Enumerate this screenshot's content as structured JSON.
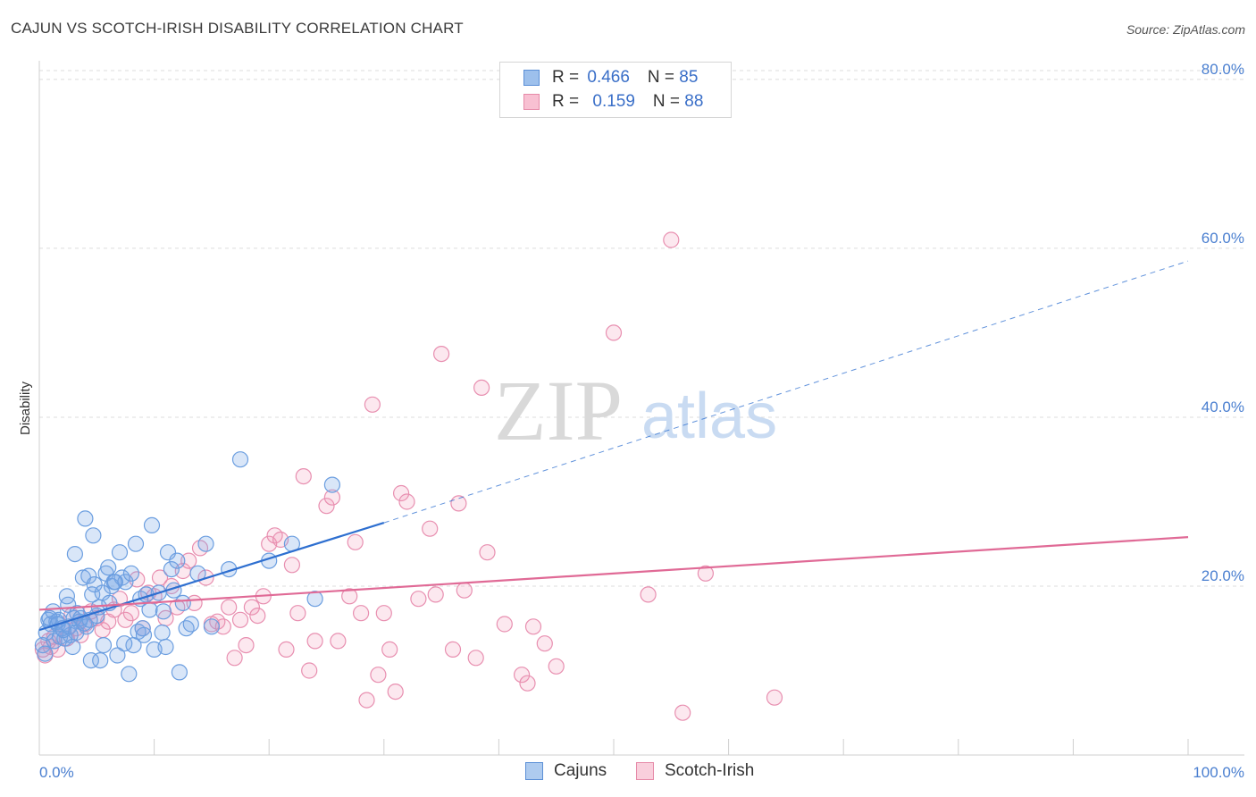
{
  "title": "CAJUN VS SCOTCH-IRISH DISABILITY CORRELATION CHART",
  "source": "Source: ZipAtlas.com",
  "watermark": {
    "zip": "ZIP",
    "atlas": "atlas"
  },
  "legend": {
    "rows": [
      {
        "r_label": "R = ",
        "r_value": "0.466",
        "n_label": "N = ",
        "n_value": "85",
        "color": "#9dc0ec",
        "border": "#5b8fd6"
      },
      {
        "r_label": "R = ",
        "r_value": "0.159",
        "n_label": "N = ",
        "n_value": "88",
        "color": "#f8c0d2",
        "border": "#e68aa8"
      }
    ]
  },
  "bottom_legend": {
    "items": [
      {
        "label": "Cajuns",
        "color": "#aecbef",
        "border": "#5b8fd6"
      },
      {
        "label": "Scotch-Irish",
        "color": "#f9cfdc",
        "border": "#e68aa8"
      }
    ]
  },
  "chart_data": {
    "type": "scatter",
    "title": "CAJUN VS SCOTCH-IRISH DISABILITY CORRELATION CHART",
    "xlabel": "",
    "ylabel": "Disability",
    "xlim": [
      0,
      100
    ],
    "ylim": [
      0,
      82
    ],
    "y_ticks": [
      {
        "value": 20,
        "label": "20.0%"
      },
      {
        "value": 40,
        "label": "40.0%"
      },
      {
        "value": 60,
        "label": "60.0%"
      },
      {
        "value": 80,
        "label": "80.0%"
      }
    ],
    "x_tick_labels": {
      "min": "0.0%",
      "max": "100.0%"
    },
    "x_minor_ticks": [
      0,
      10,
      20,
      30,
      40,
      50,
      60,
      70,
      80,
      90,
      100
    ],
    "grid": true,
    "legend": "top-center",
    "series": [
      {
        "name": "Cajuns",
        "color": "#6b9ee0",
        "fill": "rgba(120,165,230,0.28)",
        "trend": {
          "x0": 0,
          "y0": 14.8,
          "x1": 30,
          "y1": 27.5,
          "dashed_to_x": 100,
          "dashed_to_y": 58.5,
          "color": "#2e6fd0"
        },
        "points": [
          [
            0.3,
            13.0
          ],
          [
            0.5,
            12.0
          ],
          [
            0.6,
            14.5
          ],
          [
            0.8,
            16.0
          ],
          [
            1.0,
            15.5
          ],
          [
            1.2,
            17.0
          ],
          [
            1.3,
            13.5
          ],
          [
            1.5,
            15.8
          ],
          [
            1.7,
            16.0
          ],
          [
            1.8,
            14.0
          ],
          [
            2.0,
            15.0
          ],
          [
            2.2,
            13.8
          ],
          [
            2.4,
            18.8
          ],
          [
            2.5,
            17.8
          ],
          [
            2.7,
            14.2
          ],
          [
            2.9,
            12.8
          ],
          [
            3.0,
            16.2
          ],
          [
            3.1,
            23.8
          ],
          [
            3.3,
            16.8
          ],
          [
            3.5,
            15.8
          ],
          [
            3.6,
            16.2
          ],
          [
            3.8,
            21.0
          ],
          [
            4.0,
            28.0
          ],
          [
            4.1,
            15.2
          ],
          [
            4.3,
            21.2
          ],
          [
            4.5,
            11.2
          ],
          [
            4.6,
            19.0
          ],
          [
            4.7,
            26.0
          ],
          [
            4.8,
            20.2
          ],
          [
            5.0,
            16.5
          ],
          [
            5.2,
            17.5
          ],
          [
            5.3,
            11.2
          ],
          [
            5.5,
            19.2
          ],
          [
            5.6,
            13.0
          ],
          [
            5.8,
            21.5
          ],
          [
            6.0,
            22.2
          ],
          [
            6.1,
            18.0
          ],
          [
            6.3,
            20.0
          ],
          [
            6.5,
            20.5
          ],
          [
            6.8,
            11.8
          ],
          [
            7.0,
            24.0
          ],
          [
            7.2,
            21.0
          ],
          [
            7.5,
            20.5
          ],
          [
            7.8,
            9.6
          ],
          [
            8.0,
            21.5
          ],
          [
            8.2,
            13.0
          ],
          [
            8.4,
            25.0
          ],
          [
            8.6,
            14.6
          ],
          [
            8.8,
            18.5
          ],
          [
            9.0,
            15.0
          ],
          [
            9.3,
            19.0
          ],
          [
            9.6,
            17.2
          ],
          [
            9.8,
            27.2
          ],
          [
            10.0,
            12.5
          ],
          [
            10.4,
            19.2
          ],
          [
            10.7,
            14.5
          ],
          [
            11.0,
            12.8
          ],
          [
            11.2,
            24.0
          ],
          [
            11.5,
            22.0
          ],
          [
            11.7,
            19.5
          ],
          [
            12.0,
            23.0
          ],
          [
            12.2,
            9.8
          ],
          [
            12.5,
            18.0
          ],
          [
            12.8,
            15.0
          ],
          [
            13.2,
            15.5
          ],
          [
            13.8,
            21.5
          ],
          [
            14.5,
            25.0
          ],
          [
            15.0,
            15.2
          ],
          [
            16.5,
            22.0
          ],
          [
            17.5,
            35.0
          ],
          [
            20.0,
            23.0
          ],
          [
            22.0,
            25.0
          ],
          [
            24.0,
            18.5
          ],
          [
            25.5,
            32.0
          ],
          [
            0.9,
            16.2
          ],
          [
            1.6,
            15.5
          ],
          [
            2.1,
            14.8
          ],
          [
            2.6,
            15.2
          ],
          [
            3.2,
            14.5
          ],
          [
            3.9,
            15.6
          ],
          [
            4.4,
            16.0
          ],
          [
            6.6,
            20.5
          ],
          [
            7.4,
            13.2
          ],
          [
            9.1,
            14.2
          ],
          [
            10.8,
            17.0
          ]
        ]
      },
      {
        "name": "Scotch-Irish",
        "color": "#e88fb0",
        "fill": "rgba(240,150,180,0.22)",
        "trend": {
          "x0": 0,
          "y0": 17.2,
          "x1": 100,
          "y1": 25.8,
          "color": "#e06a96"
        },
        "points": [
          [
            0.3,
            12.5
          ],
          [
            0.5,
            11.8
          ],
          [
            0.8,
            13.5
          ],
          [
            1.0,
            12.8
          ],
          [
            1.3,
            14.0
          ],
          [
            1.6,
            12.5
          ],
          [
            2.0,
            15.0
          ],
          [
            2.4,
            13.8
          ],
          [
            2.8,
            16.5
          ],
          [
            3.2,
            15.0
          ],
          [
            3.6,
            14.2
          ],
          [
            4.0,
            15.5
          ],
          [
            4.5,
            17.0
          ],
          [
            5.0,
            16.2
          ],
          [
            5.5,
            14.8
          ],
          [
            6.0,
            15.8
          ],
          [
            6.5,
            17.2
          ],
          [
            7.0,
            18.5
          ],
          [
            7.5,
            16.0
          ],
          [
            8.0,
            16.8
          ],
          [
            8.5,
            20.8
          ],
          [
            9.0,
            15.0
          ],
          [
            9.5,
            19.2
          ],
          [
            10.0,
            18.8
          ],
          [
            10.5,
            21.0
          ],
          [
            11.0,
            16.2
          ],
          [
            11.5,
            20.0
          ],
          [
            12.0,
            17.5
          ],
          [
            12.5,
            21.8
          ],
          [
            13.0,
            23.0
          ],
          [
            13.5,
            18.0
          ],
          [
            14.0,
            24.5
          ],
          [
            14.5,
            21.0
          ],
          [
            15.0,
            15.5
          ],
          [
            15.5,
            15.8
          ],
          [
            16.0,
            15.2
          ],
          [
            16.5,
            17.5
          ],
          [
            17.0,
            11.5
          ],
          [
            17.5,
            16.0
          ],
          [
            18.0,
            13.0
          ],
          [
            18.5,
            17.5
          ],
          [
            19.0,
            16.5
          ],
          [
            19.5,
            18.8
          ],
          [
            20.0,
            25.0
          ],
          [
            20.5,
            26.0
          ],
          [
            21.0,
            25.5
          ],
          [
            21.5,
            12.5
          ],
          [
            22.0,
            22.5
          ],
          [
            22.5,
            16.8
          ],
          [
            23.0,
            33.0
          ],
          [
            23.5,
            10.0
          ],
          [
            24.0,
            13.5
          ],
          [
            25.0,
            29.5
          ],
          [
            25.5,
            30.5
          ],
          [
            26.0,
            13.5
          ],
          [
            27.0,
            18.8
          ],
          [
            27.5,
            25.2
          ],
          [
            28.0,
            16.8
          ],
          [
            28.5,
            6.5
          ],
          [
            29.0,
            41.5
          ],
          [
            29.5,
            9.5
          ],
          [
            30.0,
            16.8
          ],
          [
            30.5,
            12.5
          ],
          [
            31.0,
            7.5
          ],
          [
            31.5,
            31.0
          ],
          [
            32.0,
            30.0
          ],
          [
            33.0,
            18.5
          ],
          [
            34.0,
            26.8
          ],
          [
            34.5,
            19.0
          ],
          [
            35.0,
            47.5
          ],
          [
            36.0,
            12.5
          ],
          [
            36.5,
            29.8
          ],
          [
            37.0,
            19.5
          ],
          [
            38.0,
            11.5
          ],
          [
            38.5,
            43.5
          ],
          [
            39.0,
            24.0
          ],
          [
            40.5,
            15.5
          ],
          [
            42.0,
            9.5
          ],
          [
            42.5,
            8.5
          ],
          [
            43.0,
            15.2
          ],
          [
            44.0,
            13.2
          ],
          [
            45.0,
            10.5
          ],
          [
            50.0,
            50.0
          ],
          [
            53.0,
            19.0
          ],
          [
            55.0,
            61.0
          ],
          [
            56.0,
            5.0
          ],
          [
            58.0,
            21.5
          ],
          [
            64.0,
            6.8
          ]
        ]
      }
    ]
  }
}
